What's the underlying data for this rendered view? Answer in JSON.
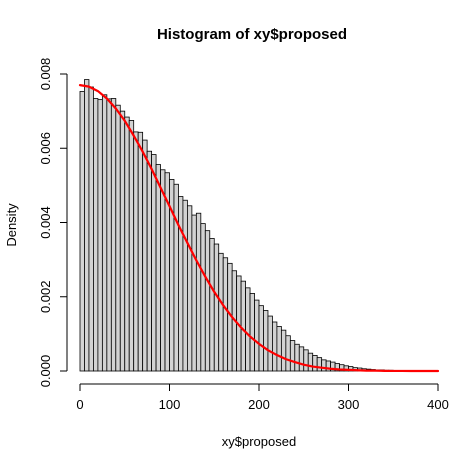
{
  "chart_data": {
    "type": "bar",
    "title": "Histogram of xy$proposed",
    "xlabel": "xy$proposed",
    "ylabel": "Density",
    "xlim": [
      0,
      400
    ],
    "ylim": [
      0,
      0.008
    ],
    "x_ticks": [
      0,
      100,
      200,
      300,
      400
    ],
    "x_tick_labels": [
      "0",
      "100",
      "200",
      "300",
      "400"
    ],
    "y_ticks": [
      0,
      0.002,
      0.004,
      0.006,
      0.008
    ],
    "y_tick_labels": [
      "0.000",
      "0.002",
      "0.004",
      "0.006",
      "0.008"
    ],
    "bin_width": 5,
    "bin_start": 0,
    "densities": [
      0.00753,
      0.00785,
      0.00765,
      0.00734,
      0.00731,
      0.00744,
      0.00733,
      0.00734,
      0.00716,
      0.007,
      0.00684,
      0.00675,
      0.00644,
      0.00643,
      0.00622,
      0.00592,
      0.00583,
      0.00556,
      0.00542,
      0.00534,
      0.00516,
      0.00503,
      0.0047,
      0.0046,
      0.00445,
      0.0042,
      0.00425,
      0.00397,
      0.00378,
      0.00357,
      0.00342,
      0.00317,
      0.00305,
      0.0029,
      0.0027,
      0.00256,
      0.00242,
      0.00224,
      0.00209,
      0.00191,
      0.00176,
      0.00163,
      0.00148,
      0.00132,
      0.0012,
      0.0011,
      0.00095,
      0.00082,
      0.00072,
      0.00065,
      0.00057,
      0.00048,
      0.00042,
      0.00036,
      0.0003,
      0.00027,
      0.00024,
      0.0002,
      0.00017,
      0.00014,
      0.00012,
      9e-05,
      8e-05,
      6e-05,
      5e-05,
      4e-05,
      3e-05,
      3e-05,
      2e-05,
      2e-05,
      1e-05,
      1e-05,
      1e-05
    ],
    "series": [
      {
        "type": "line",
        "color": "#ff0000",
        "x": [
          0,
          10,
          20,
          30,
          40,
          50,
          60,
          70,
          80,
          90,
          100,
          110,
          120,
          130,
          140,
          150,
          160,
          170,
          180,
          190,
          200,
          210,
          220,
          230,
          240,
          250,
          260,
          270,
          280,
          290,
          300,
          310,
          320,
          330,
          340,
          350,
          360,
          370,
          380,
          390,
          400
        ],
        "y": [
          0.0077,
          0.00766,
          0.00754,
          0.00734,
          0.00707,
          0.00674,
          0.00634,
          0.00591,
          0.00544,
          0.00494,
          0.00444,
          0.00393,
          0.00345,
          0.00298,
          0.00254,
          0.00213,
          0.00177,
          0.00145,
          0.00117,
          0.00093,
          0.00073,
          0.00056,
          0.00043,
          0.00032,
          0.00024,
          0.00017,
          0.00012,
          9e-05,
          6e-05,
          4e-05,
          3e-05,
          2e-05,
          1e-05,
          1e-05,
          4e-06,
          2e-06,
          1e-06,
          5e-07,
          2e-07,
          1e-07,
          0.0
        ]
      }
    ],
    "bar_fill": "#d3d3d3",
    "bar_stroke": "#000000"
  }
}
